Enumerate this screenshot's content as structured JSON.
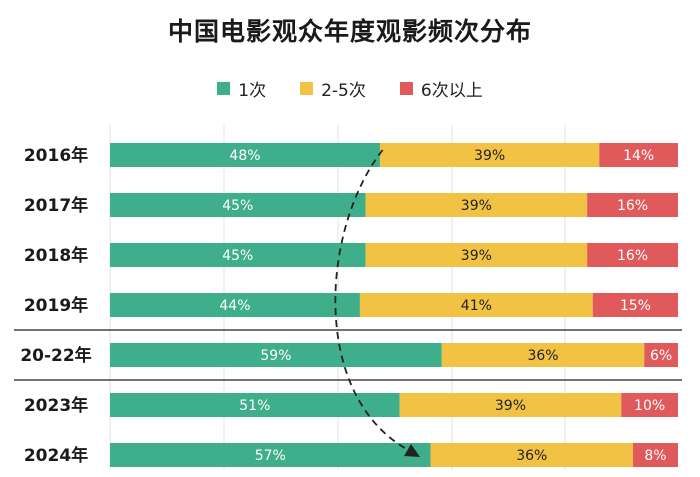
{
  "chart_data": {
    "type": "bar",
    "orientation": "horizontal",
    "stacked": true,
    "percent_stacked": true,
    "title": "中国电影观众年度观影频次分布",
    "categories": [
      "2016年",
      "2017年",
      "2018年",
      "2019年",
      "20-22年",
      "2023年",
      "2024年"
    ],
    "series": [
      {
        "name": "1次",
        "color": "#3fae8a",
        "values": [
          48,
          45,
          45,
          44,
          59,
          51,
          57
        ]
      },
      {
        "name": "2-5次",
        "color": "#f2c245",
        "values": [
          39,
          39,
          39,
          41,
          36,
          39,
          36
        ]
      },
      {
        "name": "6次以上",
        "color": "#e05a5c",
        "values": [
          14,
          16,
          16,
          15,
          6,
          10,
          8
        ]
      }
    ],
    "data_labels": [
      [
        "48%",
        "39%",
        "14%"
      ],
      [
        "45%",
        "39%",
        "16%"
      ],
      [
        "45%",
        "39%",
        "16%"
      ],
      [
        "44%",
        "41%",
        "15%"
      ],
      [
        "59%",
        "36%",
        "6%"
      ],
      [
        "51%",
        "39%",
        "10%"
      ],
      [
        "57%",
        "36%",
        "8%"
      ]
    ],
    "legend_position": "top",
    "grid": true,
    "separators_after": [
      "2019年",
      "20-22年"
    ],
    "annotation": "dashed curved arrow from 2016年 bar to 2024年 bar"
  }
}
